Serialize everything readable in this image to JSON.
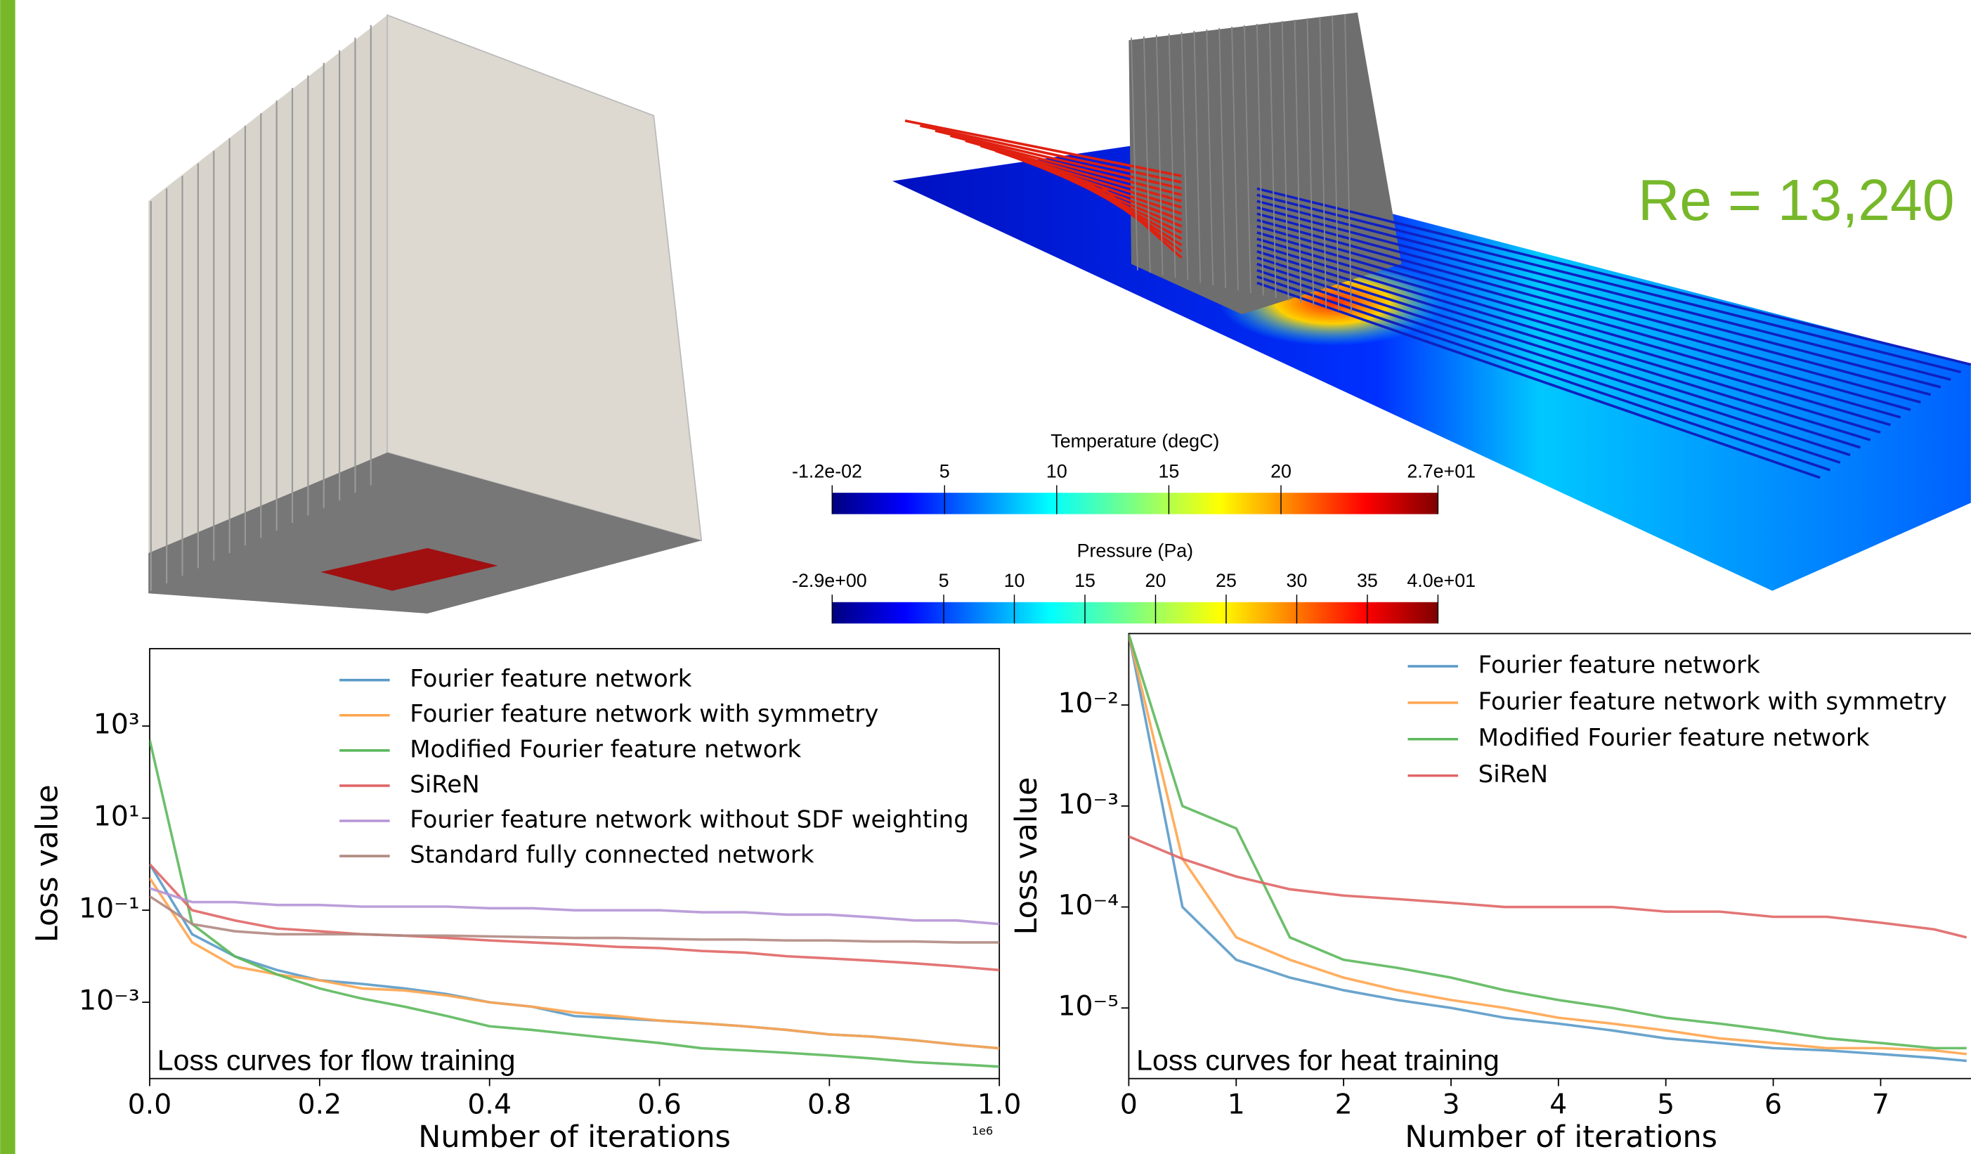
{
  "chart_data": [
    {
      "type": "line",
      "annotation": "Loss curves for flow training",
      "x_label": "Number of iterations",
      "y_label": "Loss value",
      "x_offset_label": "1e6",
      "x": [
        0,
        0.05,
        0.1,
        0.15,
        0.2,
        0.25,
        0.3,
        0.35,
        0.4,
        0.45,
        0.5,
        0.55,
        0.6,
        0.65,
        0.7,
        0.75,
        0.8,
        0.85,
        0.9,
        0.95,
        1.0
      ],
      "xlim": [
        0,
        1.0
      ],
      "xticks": [
        {
          "value": 0,
          "label": "0.0"
        },
        0.2,
        0.4,
        0.6,
        0.8,
        {
          "value": 1.0,
          "label": "1.0"
        }
      ],
      "ylim": [
        2.2e-05,
        48000
      ],
      "log_y": true,
      "grid": false,
      "legend": "upper center",
      "yticks": [
        {
          "value": 0.001,
          "label": "10⁻³"
        },
        {
          "value": 0.1,
          "label": "10⁻¹"
        },
        {
          "value": 10,
          "label": "10¹"
        },
        {
          "value": 1000,
          "label": "10³"
        }
      ],
      "series": [
        {
          "name": "Fourier feature network",
          "color": "#5a9ac8",
          "values": [
            1,
            0.03,
            0.01,
            0.005,
            0.003,
            0.0025,
            0.002,
            0.0015,
            0.001,
            0.0008,
            0.0005,
            0.00045,
            0.0004,
            0.00035,
            0.0003,
            0.00025,
            0.0002,
            0.00018,
            0.00015,
            0.00012,
            0.0001
          ]
        },
        {
          "name": "Fourier feature network with symmetry",
          "color": "#ffa54f",
          "values": [
            0.5,
            0.02,
            0.006,
            0.004,
            0.003,
            0.002,
            0.0018,
            0.0014,
            0.001,
            0.0008,
            0.0006,
            0.0005,
            0.0004,
            0.00035,
            0.0003,
            0.00025,
            0.0002,
            0.00018,
            0.00015,
            0.00012,
            0.0001
          ]
        },
        {
          "name": "Modified Fourier feature network",
          "color": "#5cb85c",
          "values": [
            500,
            0.05,
            0.01,
            0.004,
            0.002,
            0.0012,
            0.0008,
            0.0005,
            0.0003,
            0.00025,
            0.0002,
            0.00016,
            0.00013,
            0.0001,
            9e-05,
            8e-05,
            7e-05,
            6e-05,
            5e-05,
            4.5e-05,
            4e-05
          ]
        },
        {
          "name": "SiReN",
          "color": "#e06666",
          "values": [
            1,
            0.1,
            0.06,
            0.04,
            0.035,
            0.03,
            0.028,
            0.025,
            0.022,
            0.02,
            0.018,
            0.016,
            0.015,
            0.013,
            0.012,
            0.01,
            0.009,
            0.008,
            0.007,
            0.006,
            0.005
          ]
        },
        {
          "name": "Fourier feature network without SDF weighting",
          "color": "#b595d6",
          "values": [
            0.3,
            0.15,
            0.15,
            0.13,
            0.13,
            0.12,
            0.12,
            0.12,
            0.11,
            0.11,
            0.1,
            0.1,
            0.1,
            0.09,
            0.09,
            0.08,
            0.08,
            0.07,
            0.06,
            0.06,
            0.05
          ]
        },
        {
          "name": "Standard fully connected network",
          "color": "#b08a82",
          "values": [
            0.2,
            0.05,
            0.035,
            0.03,
            0.03,
            0.03,
            0.028,
            0.028,
            0.027,
            0.026,
            0.025,
            0.025,
            0.024,
            0.023,
            0.023,
            0.022,
            0.022,
            0.021,
            0.021,
            0.02,
            0.02
          ]
        }
      ]
    },
    {
      "type": "line",
      "annotation": "Loss curves for heat training",
      "x_label": "Number of iterations",
      "y_label": "Loss value",
      "x": [
        0,
        0.5,
        1,
        1.5,
        2,
        2.5,
        3,
        3.5,
        4,
        4.5,
        5,
        5.5,
        6,
        6.5,
        7,
        7.5,
        7.8
      ],
      "xlim": [
        0,
        7.84
      ],
      "xticks": [
        0,
        1,
        2,
        3,
        4,
        5,
        6,
        7
      ],
      "ylim": [
        2e-06,
        0.051
      ],
      "log_y": true,
      "grid": false,
      "legend": "upper right",
      "yticks": [
        {
          "value": 1e-05,
          "label": "10⁻⁵"
        },
        {
          "value": 0.0001,
          "label": "10⁻⁴"
        },
        {
          "value": 0.001,
          "label": "10⁻³"
        },
        {
          "value": 0.01,
          "label": "10⁻²"
        }
      ],
      "series": [
        {
          "name": "Fourier feature network",
          "color": "#5a9ac8",
          "values": [
            0.05,
            0.0001,
            3e-05,
            2e-05,
            1.5e-05,
            1.2e-05,
            1e-05,
            8e-06,
            7e-06,
            6e-06,
            5e-06,
            4.5e-06,
            4e-06,
            3.8e-06,
            3.5e-06,
            3.2e-06,
            3e-06
          ]
        },
        {
          "name": "Fourier feature network with symmetry",
          "color": "#ffa54f",
          "values": [
            0.05,
            0.0003,
            5e-05,
            3e-05,
            2e-05,
            1.5e-05,
            1.2e-05,
            1e-05,
            8e-06,
            7e-06,
            6e-06,
            5e-06,
            4.5e-06,
            4e-06,
            4e-06,
            3.8e-06,
            3.5e-06
          ]
        },
        {
          "name": "Modified Fourier feature network",
          "color": "#5cb85c",
          "values": [
            0.05,
            0.001,
            0.0006,
            5e-05,
            3e-05,
            2.5e-05,
            2e-05,
            1.5e-05,
            1.2e-05,
            1e-05,
            8e-06,
            7e-06,
            6e-06,
            5e-06,
            4.5e-06,
            4e-06,
            4e-06
          ]
        },
        {
          "name": "SiReN",
          "color": "#e06666",
          "values": [
            0.0005,
            0.0003,
            0.0002,
            0.00015,
            0.00013,
            0.00012,
            0.00011,
            0.0001,
            0.0001,
            0.0001,
            9e-05,
            9e-05,
            8e-05,
            8e-05,
            7e-05,
            6e-05,
            5e-05
          ]
        }
      ]
    }
  ],
  "annotation_re": "Re = 13,240",
  "colorbars": [
    {
      "title": "Temperature (degC)",
      "range": [
        -0.012,
        27
      ],
      "ticks": [
        {
          "value": -0.012,
          "label": "-1.2e-02"
        },
        5,
        10,
        15,
        20,
        {
          "value": 27,
          "label": "2.7e+01"
        }
      ]
    },
    {
      "title": "Pressure (Pa)",
      "range": [
        -2.9,
        40
      ],
      "ticks": [
        {
          "value": -2.9,
          "label": "-2.9e+00"
        },
        5,
        10,
        15,
        20,
        25,
        30,
        35,
        {
          "value": 40,
          "label": "4.0e+01"
        }
      ]
    }
  ]
}
